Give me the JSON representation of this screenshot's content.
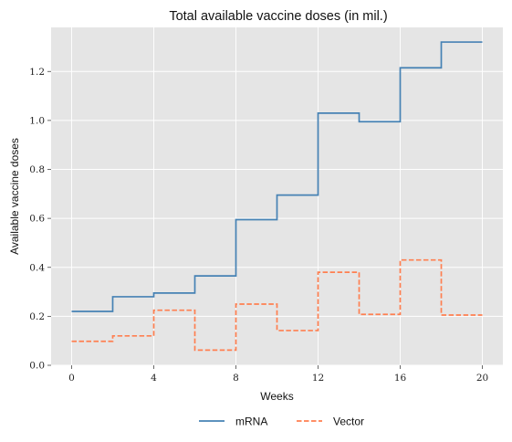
{
  "chart_data": {
    "type": "line",
    "step": "post",
    "title": "Total available vaccine doses (in mil.)",
    "xlabel": "Weeks",
    "ylabel": "Available vaccine doses",
    "xlim": [
      -1,
      21
    ],
    "ylim": [
      0,
      1.38
    ],
    "xticks": [
      0,
      4,
      8,
      12,
      16,
      20
    ],
    "yticks": [
      0.0,
      0.2,
      0.4,
      0.6,
      0.8,
      1.0,
      1.2
    ],
    "grid": true,
    "background": "#e5e5e5",
    "legend_position": "bottom-center",
    "x": [
      0,
      2,
      4,
      6,
      8,
      10,
      12,
      14,
      16,
      18,
      20
    ],
    "series": [
      {
        "name": "mRNA",
        "color": "#4682b4",
        "dash": "solid",
        "values": [
          0.22,
          0.28,
          0.295,
          0.365,
          0.595,
          0.695,
          1.03,
          0.995,
          1.215,
          1.32,
          1.32
        ]
      },
      {
        "name": "Vector",
        "color": "#ff7f50",
        "dash": "dashed",
        "values": [
          0.098,
          0.12,
          0.225,
          0.062,
          0.25,
          0.142,
          0.38,
          0.208,
          0.43,
          0.205,
          0.205
        ]
      }
    ]
  }
}
